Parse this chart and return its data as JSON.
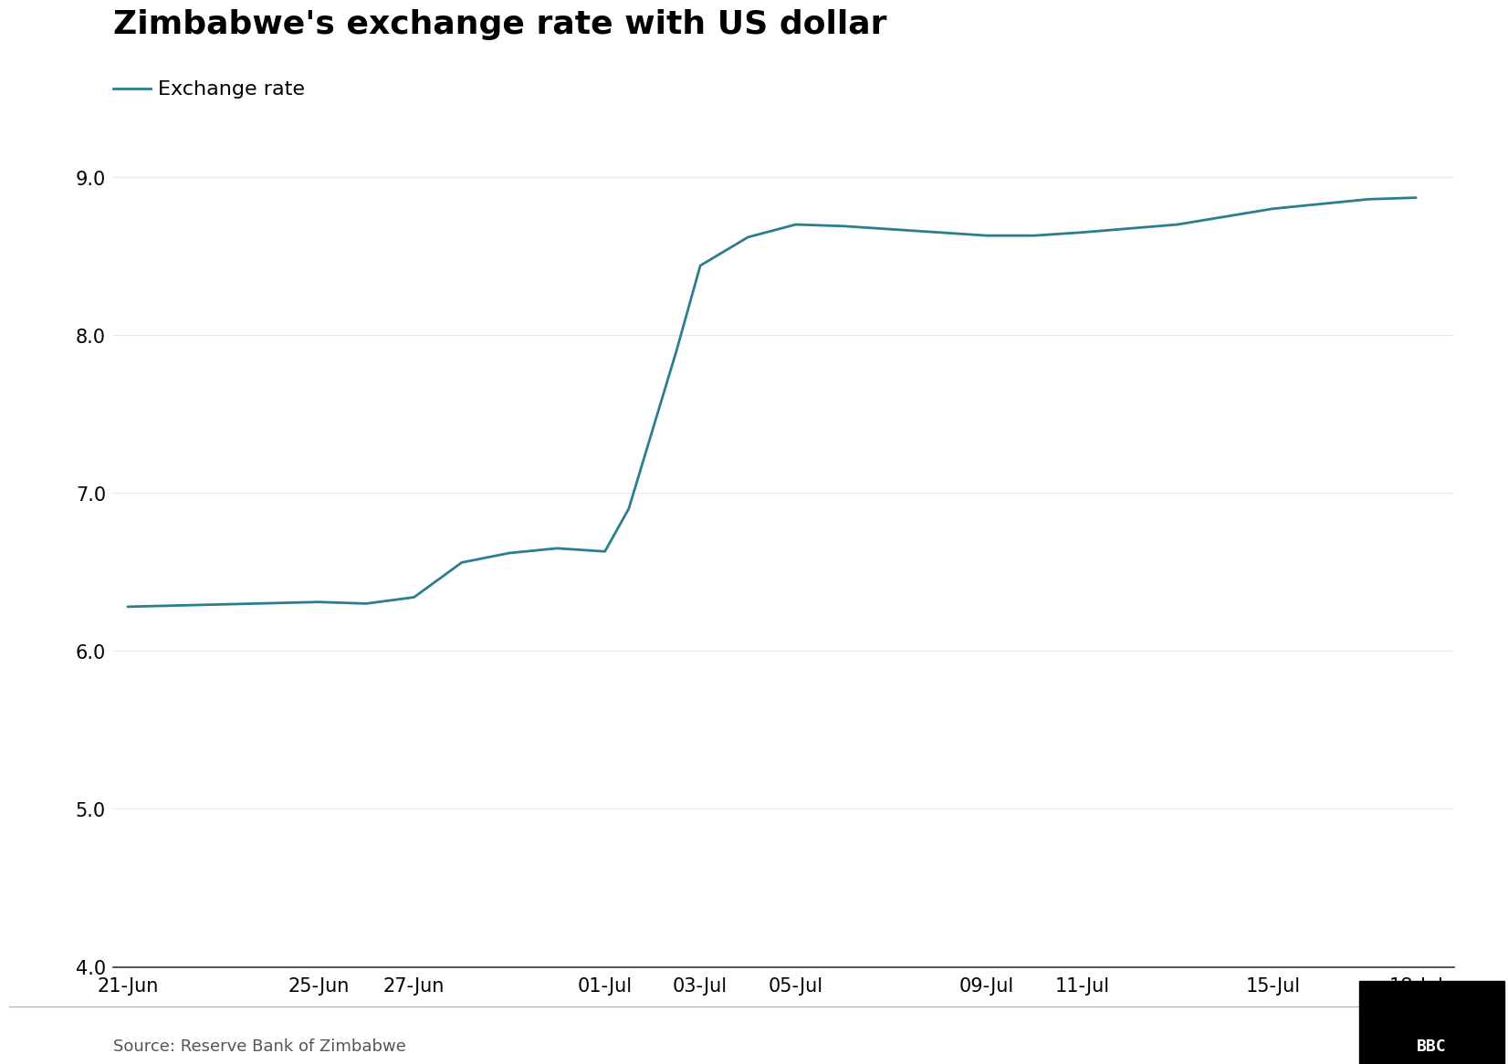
{
  "title": "Zimbabwe's exchange rate with US dollar",
  "legend_label": "Exchange rate",
  "line_color": "#2a7f8f",
  "line_width": 2.0,
  "background_color": "#ffffff",
  "source_text": "Source: Reserve Bank of Zimbabwe",
  "bbc_text": "BBC",
  "x_labels": [
    "21-Jun",
    "25-Jun",
    "27-Jun",
    "01-Jul",
    "03-Jul",
    "05-Jul",
    "09-Jul",
    "11-Jul",
    "15-Jul",
    "18-Jul"
  ],
  "x_tick_positions": [
    0,
    4,
    6,
    10,
    12,
    14,
    18,
    20,
    24,
    27
  ],
  "data_points": [
    [
      0,
      6.28
    ],
    [
      4,
      6.31
    ],
    [
      5,
      6.3
    ],
    [
      6,
      6.34
    ],
    [
      7,
      6.56
    ],
    [
      8,
      6.62
    ],
    [
      9,
      6.65
    ],
    [
      10,
      6.63
    ],
    [
      10.5,
      6.9
    ],
    [
      11,
      7.4
    ],
    [
      11.5,
      7.9
    ],
    [
      12,
      8.44
    ],
    [
      13,
      8.62
    ],
    [
      14,
      8.7
    ],
    [
      15,
      8.69
    ],
    [
      18,
      8.63
    ],
    [
      19,
      8.63
    ],
    [
      20,
      8.65
    ],
    [
      22,
      8.7
    ],
    [
      24,
      8.8
    ],
    [
      26,
      8.86
    ],
    [
      27,
      8.87
    ]
  ],
  "ylim": [
    4.0,
    9.2
  ],
  "yticks": [
    4.0,
    5.0,
    6.0,
    7.0,
    8.0,
    9.0
  ],
  "xlim": [
    -0.3,
    27.8
  ],
  "title_fontsize": 26,
  "legend_fontsize": 16,
  "tick_fontsize": 15,
  "source_fontsize": 13,
  "grid_color": "#e8e8e8",
  "spine_bottom_color": "#333333",
  "spine_left_color": "#cccccc",
  "source_color": "#555555"
}
